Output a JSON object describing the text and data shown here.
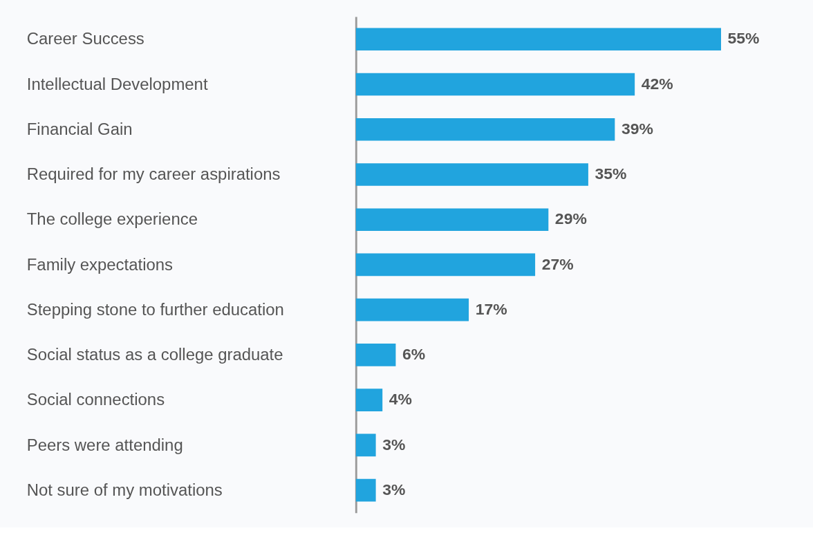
{
  "chart_data": {
    "type": "bar",
    "orientation": "horizontal",
    "categories": [
      "Career Success",
      "Intellectual Development",
      "Financial Gain",
      "Required for my career aspirations",
      "The college experience",
      "Family expectations",
      "Stepping stone to further education",
      "Social status as a college graduate",
      "Social connections",
      "Peers were attending",
      "Not sure of my motivations"
    ],
    "values": [
      55,
      42,
      39,
      35,
      29,
      27,
      17,
      6,
      4,
      3,
      3
    ],
    "value_labels": [
      "55%",
      "42%",
      "39%",
      "35%",
      "29%",
      "27%",
      "17%",
      "6%",
      "4%",
      "3%",
      "3%"
    ],
    "color": "#21a4de",
    "grid": false
  }
}
